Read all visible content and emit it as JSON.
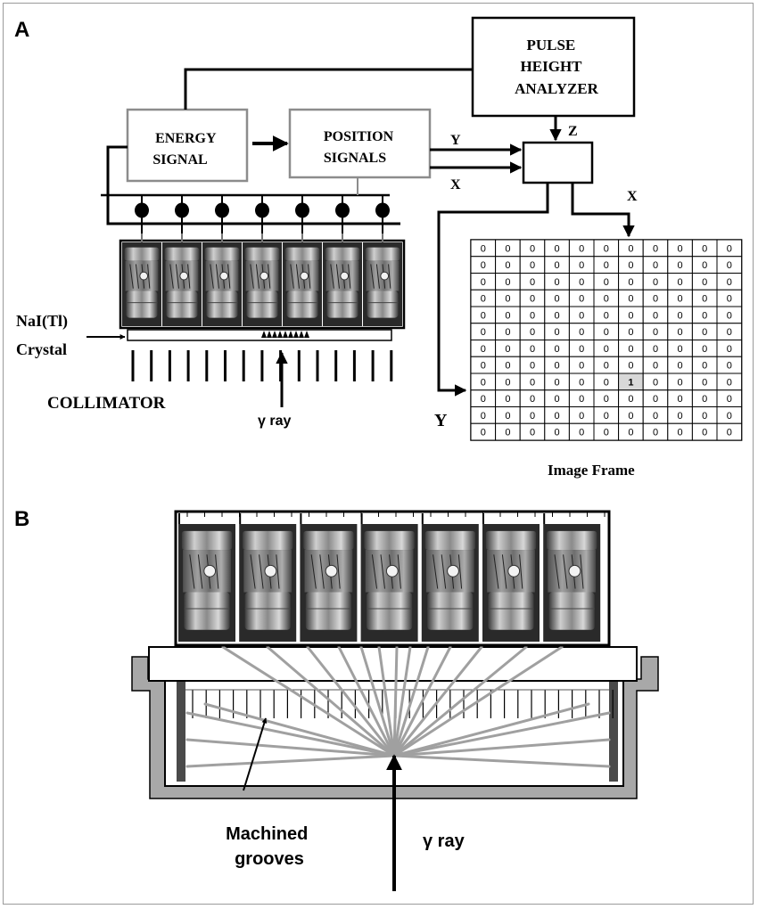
{
  "panel_a": {
    "label": "A",
    "pulse_height_analyzer": "PULSE HEIGHT ANALYZER",
    "pulse_height_analyzer_lines": [
      "PULSE",
      "HEIGHT",
      "ANALYZER"
    ],
    "energy_signal_lines": [
      "ENERGY",
      "SIGNAL"
    ],
    "position_signals_lines": [
      "POSITION",
      "SIGNALS"
    ],
    "label_y_top": "Y",
    "label_x_top": "X",
    "label_z": "Z",
    "label_x_grid": "X",
    "label_y_grid": "Y",
    "crystal_lines": [
      "NaI(Tl)",
      "Crystal"
    ],
    "collimator": "COLLIMATOR",
    "gamma_ray": "γ ray",
    "image_frame_title": "Image Frame",
    "grid": {
      "rows": 12,
      "cols": 11,
      "default_value": "0",
      "hit_value": "1",
      "hit_row": 8,
      "hit_col": 6
    }
  },
  "panel_b": {
    "label": "B",
    "grooves_lines": [
      "Machined",
      "grooves"
    ],
    "gamma_ray": "γ ray"
  },
  "colors": {
    "line": "#000000",
    "box_border_gray": "#8c8c8c",
    "light_paths": "#a0a0a0",
    "housing": "#a8a8a8"
  }
}
